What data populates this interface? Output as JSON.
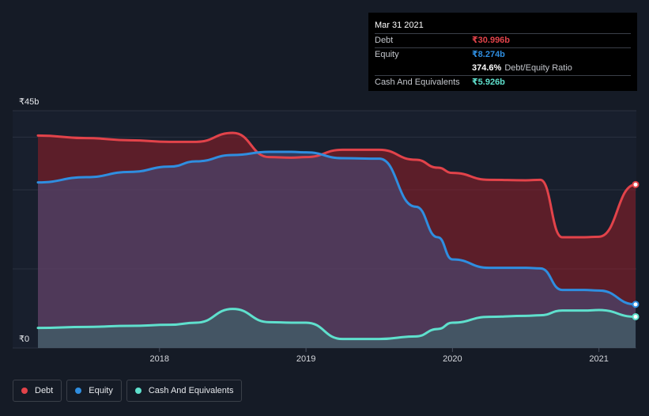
{
  "chart_data": {
    "type": "area",
    "currency_symbol": "₹",
    "y_axis_top_label": "₹45b",
    "y_axis_bottom_label": "₹0",
    "ylim": [
      0,
      45
    ],
    "xlim": [
      2017.17,
      2021.25
    ],
    "x_ticks": [
      {
        "value": 2018,
        "label": "2018"
      },
      {
        "value": 2019,
        "label": "2019"
      },
      {
        "value": 2020,
        "label": "2020"
      },
      {
        "value": 2021,
        "label": "2021"
      }
    ],
    "grid": true,
    "series": [
      {
        "name": "Debt",
        "color": "#e2434a",
        "fill": "rgba(150,30,38,0.55)",
        "points": [
          [
            2017.17,
            40.3
          ],
          [
            2017.5,
            39.8
          ],
          [
            2017.8,
            39.4
          ],
          [
            2018.07,
            39.1
          ],
          [
            2018.25,
            39.1
          ],
          [
            2018.5,
            40.8
          ],
          [
            2018.75,
            36.2
          ],
          [
            2018.9,
            36.1
          ],
          [
            2019.0,
            36.2
          ],
          [
            2019.25,
            37.6
          ],
          [
            2019.5,
            37.6
          ],
          [
            2019.75,
            35.7
          ],
          [
            2019.9,
            34.2
          ],
          [
            2020.0,
            33.2
          ],
          [
            2020.25,
            31.9
          ],
          [
            2020.5,
            31.8
          ],
          [
            2020.6,
            31.9
          ],
          [
            2020.75,
            21.0
          ],
          [
            2020.9,
            21.0
          ],
          [
            2021.0,
            21.1
          ],
          [
            2021.25,
            31.0
          ]
        ]
      },
      {
        "name": "Equity",
        "color": "#2f8ee0",
        "fill": "rgba(70,80,130,0.55)",
        "points": [
          [
            2017.17,
            31.4
          ],
          [
            2017.5,
            32.4
          ],
          [
            2017.8,
            33.4
          ],
          [
            2018.07,
            34.4
          ],
          [
            2018.25,
            35.4
          ],
          [
            2018.5,
            36.6
          ],
          [
            2018.75,
            37.2
          ],
          [
            2018.9,
            37.2
          ],
          [
            2019.0,
            37.1
          ],
          [
            2019.25,
            36.0
          ],
          [
            2019.5,
            35.9
          ],
          [
            2019.75,
            26.8
          ],
          [
            2019.9,
            21.0
          ],
          [
            2020.0,
            16.8
          ],
          [
            2020.25,
            15.2
          ],
          [
            2020.5,
            15.2
          ],
          [
            2020.6,
            15.1
          ],
          [
            2020.75,
            11.0
          ],
          [
            2020.9,
            11.0
          ],
          [
            2021.0,
            10.9
          ],
          [
            2021.25,
            8.274
          ]
        ]
      },
      {
        "name": "Cash And Equivalents",
        "color": "#5fe0cd",
        "fill": "rgba(60,110,110,0.55)",
        "points": [
          [
            2017.17,
            3.8
          ],
          [
            2017.5,
            4.0
          ],
          [
            2017.8,
            4.2
          ],
          [
            2018.07,
            4.4
          ],
          [
            2018.25,
            4.8
          ],
          [
            2018.5,
            7.4
          ],
          [
            2018.75,
            4.9
          ],
          [
            2018.9,
            4.8
          ],
          [
            2019.0,
            4.8
          ],
          [
            2019.25,
            1.7
          ],
          [
            2019.5,
            1.7
          ],
          [
            2019.75,
            2.2
          ],
          [
            2019.9,
            3.6
          ],
          [
            2020.0,
            4.8
          ],
          [
            2020.25,
            5.9
          ],
          [
            2020.5,
            6.1
          ],
          [
            2020.6,
            6.2
          ],
          [
            2020.75,
            7.1
          ],
          [
            2020.9,
            7.1
          ],
          [
            2021.0,
            7.2
          ],
          [
            2021.25,
            5.926
          ]
        ]
      }
    ]
  },
  "tooltip": {
    "date": "Mar 31 2021",
    "rows": [
      {
        "label": "Debt",
        "value": "₹30.996b",
        "color": "#e2434a"
      },
      {
        "label": "Equity",
        "value": "₹8.274b",
        "color": "#2f8ee0"
      }
    ],
    "ratio_value": "374.6%",
    "ratio_label": "Debt/Equity Ratio",
    "cash_label": "Cash And Equivalents",
    "cash_value": "₹5.926b",
    "cash_color": "#5fe0cd"
  },
  "legend": [
    {
      "label": "Debt",
      "color": "#e2434a"
    },
    {
      "label": "Equity",
      "color": "#2f8ee0"
    },
    {
      "label": "Cash And Equivalents",
      "color": "#5fe0cd"
    }
  ]
}
